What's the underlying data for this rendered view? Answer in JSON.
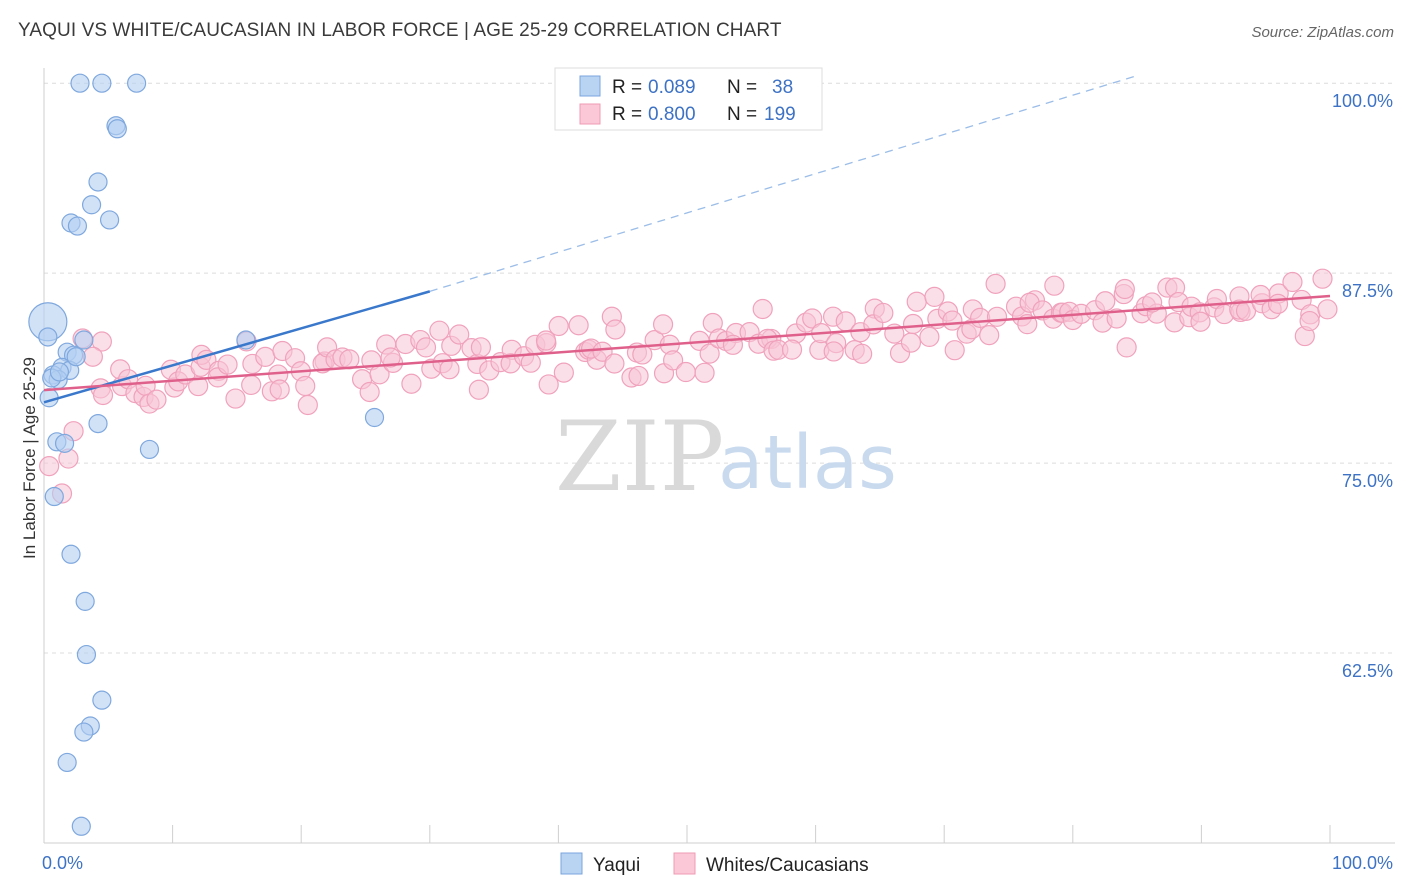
{
  "title": "YAQUI VS WHITE/CAUCASIAN IN LABOR FORCE | AGE 25-29 CORRELATION CHART",
  "source": "Source: ZipAtlas.com",
  "watermark": {
    "zip": "ZIP",
    "atlas": "atlas"
  },
  "legend": {
    "rows": [
      {
        "r_label": "R =",
        "r_value": "0.089",
        "n_label": "N =",
        "n_value": "38"
      },
      {
        "r_label": "R =",
        "r_value": "0.800",
        "n_label": "N =",
        "n_value": "199"
      }
    ]
  },
  "chart_data": {
    "type": "scatter",
    "title": "YAQUI VS WHITE/CAUCASIAN IN LABOR FORCE | AGE 25-29 CORRELATION CHART",
    "xlabel": "",
    "ylabel": "In Labor Force | Age 25-29",
    "xlim": [
      0,
      100
    ],
    "ylim": [
      50,
      101
    ],
    "x_tick_labels": [
      "0.0%",
      "100.0%"
    ],
    "y_ticks": [
      100,
      87.5,
      75,
      62.5
    ],
    "y_tick_labels": [
      "100.0%",
      "87.5%",
      "75.0%",
      "62.5%"
    ],
    "grid": true,
    "legend_position": "top-center",
    "colors": {
      "yaqui": "#8fb6e8",
      "yaqui_line": "#3a78cc",
      "white": "#f4a9c2",
      "white_line": "#e0608c"
    },
    "series": [
      {
        "name": "Yaqui",
        "r": 0.089,
        "n": 38,
        "trend": {
          "x0": 0,
          "y0": 79.0,
          "x1": 30,
          "y1": 86.3,
          "dashed_to_x": 85,
          "dashed_to_y": 100.5
        },
        "points": [
          [
            2.8,
            100
          ],
          [
            4.5,
            100
          ],
          [
            7.2,
            100
          ],
          [
            5.6,
            97.2
          ],
          [
            5.7,
            97
          ],
          [
            4.2,
            93.5
          ],
          [
            3.7,
            92
          ],
          [
            5.1,
            91
          ],
          [
            2.1,
            90.8
          ],
          [
            2.6,
            90.6
          ],
          [
            0.3,
            84.3
          ],
          [
            0.3,
            83.3
          ],
          [
            3.1,
            83.1
          ],
          [
            15.7,
            83.1
          ],
          [
            1.8,
            82.3
          ],
          [
            2.3,
            82.1
          ],
          [
            1.4,
            81.3
          ],
          [
            2.0,
            81.1
          ],
          [
            0.7,
            80.8
          ],
          [
            1.1,
            80.5
          ],
          [
            0.4,
            79.3
          ],
          [
            25.7,
            78.0
          ],
          [
            4.2,
            77.6
          ],
          [
            1.0,
            76.4
          ],
          [
            1.6,
            76.3
          ],
          [
            8.2,
            75.9
          ],
          [
            0.8,
            72.8
          ],
          [
            2.1,
            69.0
          ],
          [
            3.2,
            65.9
          ],
          [
            3.3,
            62.4
          ],
          [
            4.5,
            59.4
          ],
          [
            3.6,
            57.7
          ],
          [
            3.1,
            57.3
          ],
          [
            1.8,
            55.3
          ],
          [
            2.9,
            51.1
          ],
          [
            0.6,
            80.6
          ],
          [
            1.2,
            81.0
          ],
          [
            2.5,
            82.0
          ]
        ]
      },
      {
        "name": "Whites/Caucasians",
        "r": 0.8,
        "n": 199,
        "trend": {
          "x0": 0,
          "y0": 79.8,
          "x1": 100,
          "y1": 86.0
        },
        "points": []
      }
    ]
  },
  "bottom_legend": [
    {
      "label": "Yaqui"
    },
    {
      "label": "Whites/Caucasians"
    }
  ]
}
